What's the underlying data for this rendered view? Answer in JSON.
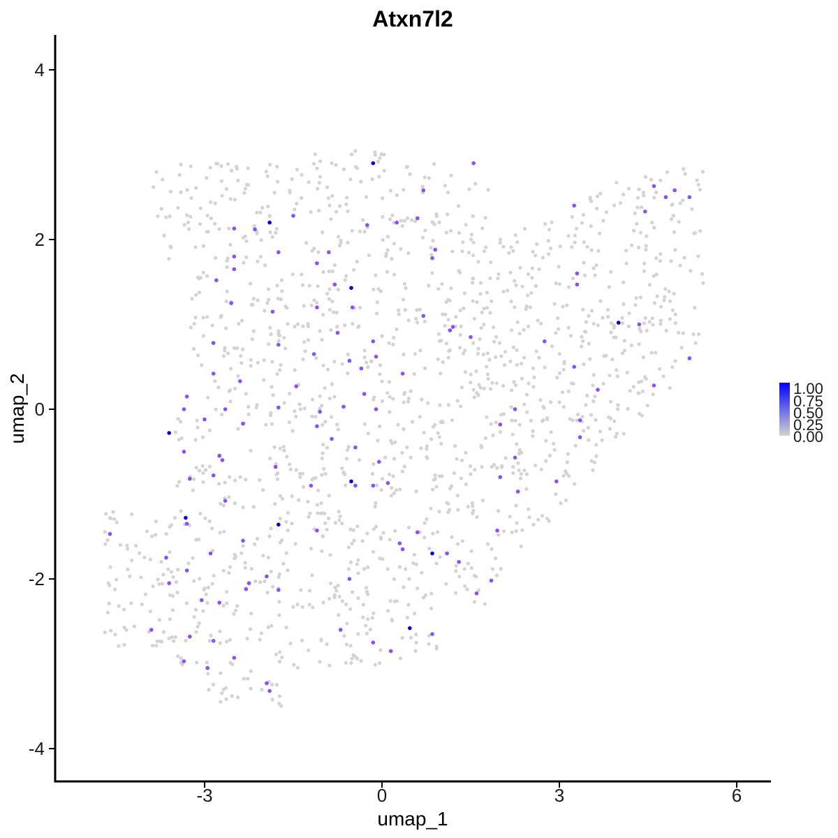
{
  "chart_data": {
    "type": "scatter",
    "title": "Atxn7l2",
    "xlabel": "umap_1",
    "ylabel": "umap_2",
    "xlim": [
      -5.4,
      6.6
    ],
    "ylim": [
      -4.35,
      4.4
    ],
    "x_ticks": [
      -3,
      0,
      3,
      6
    ],
    "y_ticks": [
      -4,
      -2,
      0,
      2,
      4
    ],
    "x_tick_labels": [
      "-3",
      "0",
      "3",
      "6"
    ],
    "y_tick_labels": [
      "-4",
      "-2",
      "0",
      "2",
      "4"
    ],
    "grid": false,
    "color_scale": {
      "low": "#d3d3d3",
      "high": "#0000ff",
      "min": 0,
      "max": 1
    },
    "legend": {
      "position": "right",
      "labels": [
        "1.00",
        "0.75",
        "0.50",
        "0.25",
        "0.00"
      ]
    },
    "background_points": {
      "count": 1500,
      "color": "#d3d3d3",
      "value": 0
    },
    "points": [
      {
        "x": -0.15,
        "y": 2.9,
        "v": 1.0
      },
      {
        "x": -1.9,
        "y": 2.2,
        "v": 1.0
      },
      {
        "x": -0.52,
        "y": 1.43,
        "v": 1.0
      },
      {
        "x": 4.0,
        "y": 1.02,
        "v": 1.0
      },
      {
        "x": -3.6,
        "y": -0.28,
        "v": 1.0
      },
      {
        "x": -0.52,
        "y": -0.85,
        "v": 1.0
      },
      {
        "x": -3.32,
        "y": -1.28,
        "v": 1.0
      },
      {
        "x": -1.75,
        "y": -1.36,
        "v": 1.0
      },
      {
        "x": 0.85,
        "y": -1.7,
        "v": 1.0
      },
      {
        "x": 0.47,
        "y": -2.58,
        "v": 1.0
      },
      {
        "x": 1.55,
        "y": 2.9,
        "v": 0.7
      },
      {
        "x": 0.7,
        "y": 2.58,
        "v": 0.7
      },
      {
        "x": 0.6,
        "y": 2.25,
        "v": 0.7
      },
      {
        "x": 0.25,
        "y": 2.2,
        "v": 0.7
      },
      {
        "x": -0.25,
        "y": 2.17,
        "v": 0.7
      },
      {
        "x": -2.15,
        "y": 2.12,
        "v": 0.7
      },
      {
        "x": -2.5,
        "y": 2.13,
        "v": 0.7
      },
      {
        "x": -1.5,
        "y": 2.28,
        "v": 0.7
      },
      {
        "x": 0.9,
        "y": 1.88,
        "v": 0.7
      },
      {
        "x": 0.85,
        "y": 1.78,
        "v": 0.7
      },
      {
        "x": -0.9,
        "y": 1.85,
        "v": 0.7
      },
      {
        "x": -1.1,
        "y": 1.72,
        "v": 0.7
      },
      {
        "x": -1.75,
        "y": 1.85,
        "v": 0.7
      },
      {
        "x": -2.5,
        "y": 1.65,
        "v": 0.7
      },
      {
        "x": -2.5,
        "y": 1.8,
        "v": 0.7
      },
      {
        "x": -2.8,
        "y": 1.52,
        "v": 0.7
      },
      {
        "x": -0.8,
        "y": 1.47,
        "v": 0.7
      },
      {
        "x": -0.5,
        "y": 1.2,
        "v": 0.7
      },
      {
        "x": -1.1,
        "y": 1.2,
        "v": 0.7
      },
      {
        "x": -1.85,
        "y": 1.15,
        "v": 0.7
      },
      {
        "x": -2.55,
        "y": 1.25,
        "v": 0.7
      },
      {
        "x": 0.7,
        "y": 1.1,
        "v": 0.7
      },
      {
        "x": 1.2,
        "y": 0.97,
        "v": 0.7
      },
      {
        "x": 1.15,
        "y": 0.93,
        "v": 0.7
      },
      {
        "x": 1.5,
        "y": 0.85,
        "v": 0.7
      },
      {
        "x": 2.75,
        "y": 0.8,
        "v": 0.7
      },
      {
        "x": 3.25,
        "y": 2.4,
        "v": 0.7
      },
      {
        "x": 3.3,
        "y": 1.6,
        "v": 0.7
      },
      {
        "x": 3.3,
        "y": 1.47,
        "v": 0.7
      },
      {
        "x": 4.6,
        "y": 2.63,
        "v": 0.7
      },
      {
        "x": 4.8,
        "y": 2.5,
        "v": 0.7
      },
      {
        "x": 4.95,
        "y": 2.58,
        "v": 0.7
      },
      {
        "x": 5.2,
        "y": 2.5,
        "v": 0.7
      },
      {
        "x": 4.45,
        "y": 2.33,
        "v": 0.7
      },
      {
        "x": 4.35,
        "y": 1.0,
        "v": 0.7
      },
      {
        "x": 5.2,
        "y": 0.6,
        "v": 0.7
      },
      {
        "x": 3.25,
        "y": 0.5,
        "v": 0.7
      },
      {
        "x": 4.6,
        "y": 0.28,
        "v": 0.7
      },
      {
        "x": 3.65,
        "y": 0.23,
        "v": 0.7
      },
      {
        "x": 3.35,
        "y": -0.33,
        "v": 0.7
      },
      {
        "x": 3.35,
        "y": -0.13,
        "v": 0.7
      },
      {
        "x": 2.95,
        "y": -0.85,
        "v": 0.7
      },
      {
        "x": 2.25,
        "y": 0.0,
        "v": 0.7
      },
      {
        "x": 2.0,
        "y": -0.18,
        "v": 0.7
      },
      {
        "x": 2.25,
        "y": -0.57,
        "v": 0.7
      },
      {
        "x": 2.0,
        "y": -0.8,
        "v": 0.7
      },
      {
        "x": 2.3,
        "y": -0.97,
        "v": 0.7
      },
      {
        "x": 1.95,
        "y": -1.43,
        "v": 0.7
      },
      {
        "x": 1.85,
        "y": -2.02,
        "v": 0.7
      },
      {
        "x": 1.6,
        "y": -2.17,
        "v": 0.7
      },
      {
        "x": 1.3,
        "y": -1.8,
        "v": 0.7
      },
      {
        "x": 1.1,
        "y": -1.7,
        "v": 0.7
      },
      {
        "x": 0.85,
        "y": -2.65,
        "v": 0.7
      },
      {
        "x": 0.6,
        "y": -1.45,
        "v": 0.7
      },
      {
        "x": 0.35,
        "y": -1.65,
        "v": 0.7
      },
      {
        "x": 0.3,
        "y": -1.58,
        "v": 0.7
      },
      {
        "x": 0.15,
        "y": -2.85,
        "v": 0.7
      },
      {
        "x": -0.15,
        "y": -2.75,
        "v": 0.7
      },
      {
        "x": -0.7,
        "y": -2.6,
        "v": 0.7
      },
      {
        "x": -0.55,
        "y": -2.0,
        "v": 0.7
      },
      {
        "x": -0.15,
        "y": -0.9,
        "v": 0.7
      },
      {
        "x": 0.1,
        "y": -0.87,
        "v": 0.7
      },
      {
        "x": -0.05,
        "y": -0.62,
        "v": 0.7
      },
      {
        "x": -0.45,
        "y": -0.9,
        "v": 0.7
      },
      {
        "x": -0.45,
        "y": -0.45,
        "v": 0.7
      },
      {
        "x": -0.85,
        "y": -0.35,
        "v": 0.7
      },
      {
        "x": -1.1,
        "y": -0.2,
        "v": 0.7
      },
      {
        "x": -1.05,
        "y": -0.03,
        "v": 0.7
      },
      {
        "x": -0.65,
        "y": 0.03,
        "v": 0.7
      },
      {
        "x": -0.3,
        "y": 0.18,
        "v": 0.7
      },
      {
        "x": -0.1,
        "y": 0.0,
        "v": 0.7
      },
      {
        "x": -0.35,
        "y": 0.48,
        "v": 0.7
      },
      {
        "x": -0.55,
        "y": 0.57,
        "v": 0.7
      },
      {
        "x": -0.1,
        "y": 0.62,
        "v": 0.7
      },
      {
        "x": -0.15,
        "y": 0.8,
        "v": 0.7
      },
      {
        "x": -0.75,
        "y": 0.9,
        "v": 0.7
      },
      {
        "x": 0.35,
        "y": 0.42,
        "v": 0.7
      },
      {
        "x": -1.15,
        "y": 0.65,
        "v": 0.7
      },
      {
        "x": -1.45,
        "y": 0.27,
        "v": 0.7
      },
      {
        "x": -1.75,
        "y": 0.76,
        "v": 0.7
      },
      {
        "x": -1.75,
        "y": 0.02,
        "v": 0.7
      },
      {
        "x": -1.8,
        "y": -0.68,
        "v": 0.7
      },
      {
        "x": -1.2,
        "y": -0.9,
        "v": 0.7
      },
      {
        "x": -1.1,
        "y": -1.43,
        "v": 0.7
      },
      {
        "x": -2.35,
        "y": -0.17,
        "v": 0.7
      },
      {
        "x": -2.65,
        "y": 0.0,
        "v": 0.7
      },
      {
        "x": -2.85,
        "y": 0.42,
        "v": 0.7
      },
      {
        "x": -2.85,
        "y": 0.78,
        "v": 0.7
      },
      {
        "x": -2.4,
        "y": 0.33,
        "v": 0.7
      },
      {
        "x": -3.3,
        "y": 0.15,
        "v": 0.7
      },
      {
        "x": -3.35,
        "y": 0.0,
        "v": 0.7
      },
      {
        "x": -3.0,
        "y": -0.12,
        "v": 0.7
      },
      {
        "x": -2.75,
        "y": -0.55,
        "v": 0.7
      },
      {
        "x": -2.7,
        "y": -0.6,
        "v": 0.7
      },
      {
        "x": -2.65,
        "y": -1.08,
        "v": 0.7
      },
      {
        "x": -2.85,
        "y": -0.78,
        "v": 0.7
      },
      {
        "x": -3.25,
        "y": -0.82,
        "v": 0.7
      },
      {
        "x": -3.35,
        "y": -0.5,
        "v": 0.7
      },
      {
        "x": -3.3,
        "y": -1.35,
        "v": 0.7
      },
      {
        "x": -3.65,
        "y": -1.75,
        "v": 0.7
      },
      {
        "x": -3.6,
        "y": -2.05,
        "v": 0.7
      },
      {
        "x": -3.3,
        "y": -1.9,
        "v": 0.7
      },
      {
        "x": -3.05,
        "y": -2.25,
        "v": 0.7
      },
      {
        "x": -2.9,
        "y": -1.7,
        "v": 0.7
      },
      {
        "x": -2.75,
        "y": -2.28,
        "v": 0.7
      },
      {
        "x": -2.35,
        "y": -1.55,
        "v": 0.7
      },
      {
        "x": -2.25,
        "y": -2.05,
        "v": 0.7
      },
      {
        "x": -2.3,
        "y": -2.12,
        "v": 0.7
      },
      {
        "x": -1.75,
        "y": -2.13,
        "v": 0.7
      },
      {
        "x": -1.95,
        "y": -1.97,
        "v": 0.7
      },
      {
        "x": -3.25,
        "y": -2.68,
        "v": 0.7
      },
      {
        "x": -2.85,
        "y": -2.73,
        "v": 0.7
      },
      {
        "x": -3.35,
        "y": -2.97,
        "v": 0.7
      },
      {
        "x": -2.95,
        "y": -3.05,
        "v": 0.7
      },
      {
        "x": -2.5,
        "y": -2.93,
        "v": 0.7
      },
      {
        "x": -1.95,
        "y": -3.23,
        "v": 0.7
      },
      {
        "x": -1.9,
        "y": -3.32,
        "v": 0.7
      },
      {
        "x": -3.9,
        "y": -2.6,
        "v": 0.7
      },
      {
        "x": -4.6,
        "y": -1.47,
        "v": 0.7
      }
    ]
  }
}
